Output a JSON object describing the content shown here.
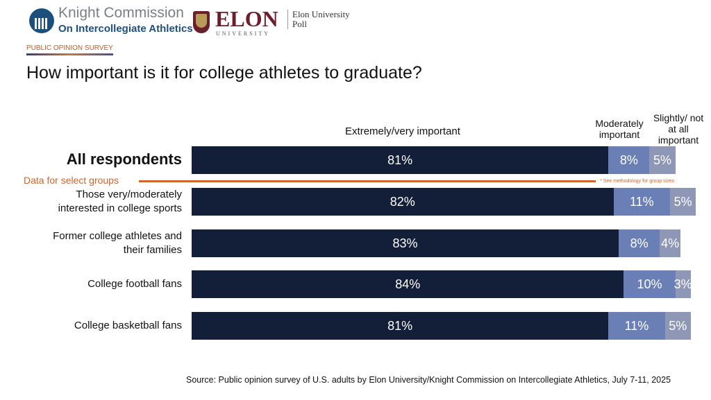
{
  "header": {
    "logo1_line1": "Knight Commission",
    "logo1_line2": "On Intercollegiate Athletics",
    "logo2": "ELON",
    "logo2_sub": "UNIVERSITY",
    "logo2_poll": "Elon University Poll",
    "survey_label": "PUBLIC OPINION SURVEY"
  },
  "title": "How important is it for college athletes to graduate?",
  "source": "Source: Public opinion survey of U.S. adults by Elon University/Knight Commission on Intercollegiate Athletics, July 7-11, 2025",
  "colors": {
    "extremely": "#131f38",
    "moderately": "#6a7fb5",
    "slightly": "#8e97b5",
    "accent": "#d0652e"
  },
  "chart_data": {
    "type": "bar",
    "orientation": "horizontal",
    "stacked": true,
    "title": "How important is it for college athletes to graduate?",
    "series_labels": [
      "Extremely/very important",
      "Moderately important",
      "Slightly/ not at all important"
    ],
    "divider_label": "Data for select groups",
    "note": "* See methodology for group sizes",
    "categories": [
      "All respondents",
      "Those very/moderately interested in college sports",
      "Former college athletes and their families",
      "College football fans",
      "College basketball fans"
    ],
    "series": [
      {
        "name": "Extremely/very important",
        "values": [
          81,
          82,
          83,
          84,
          81
        ]
      },
      {
        "name": "Moderately important",
        "values": [
          8,
          11,
          8,
          10,
          11
        ]
      },
      {
        "name": "Slightly/not at all important",
        "values": [
          5,
          5,
          4,
          3,
          5
        ]
      }
    ]
  }
}
